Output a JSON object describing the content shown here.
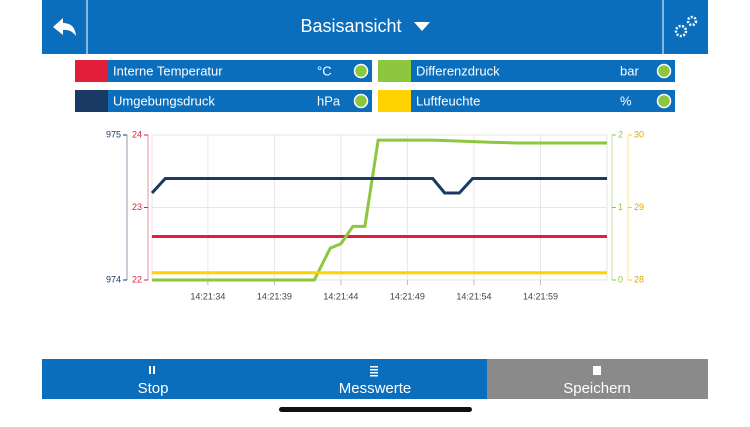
{
  "header": {
    "title": "Basisansicht"
  },
  "chart_data": {
    "type": "line",
    "grid": true,
    "xlim": [
      51689.8,
      51724
    ],
    "xticks": [
      {
        "value": 51694,
        "label": "14:21:34"
      },
      {
        "value": 51699,
        "label": "14:21:39"
      },
      {
        "value": 51704,
        "label": "14:21:44"
      },
      {
        "value": 51709,
        "label": "14:21:49"
      },
      {
        "value": 51714,
        "label": "14:21:54"
      },
      {
        "value": 51719,
        "label": "14:21:59"
      }
    ],
    "series": [
      {
        "name": "Interne Temperatur",
        "unit": "°C",
        "color": "#e31e3a",
        "ylim": [
          22,
          24
        ],
        "yticks": [
          22,
          23,
          24
        ],
        "x": [
          51689.8,
          51724
        ],
        "values": [
          22.6,
          22.6
        ]
      },
      {
        "name": "Differenzdruck",
        "unit": "bar",
        "color": "#8dc63f",
        "ylim": [
          0,
          2
        ],
        "yticks": [
          0,
          1,
          2
        ],
        "x": [
          51689.8,
          51702.0,
          51703.2,
          51704.0,
          51704.9,
          51705.8,
          51706.8,
          51710.9,
          51712.2,
          51715.2,
          51717.4,
          51724
        ],
        "values": [
          0,
          0,
          0.44,
          0.5,
          0.74,
          0.74,
          1.93,
          1.93,
          1.92,
          1.9,
          1.89,
          1.89
        ]
      },
      {
        "name": "Umgebungsdruck",
        "unit": "hPa",
        "color": "#1a3a66",
        "ylim": [
          974,
          975
        ],
        "yticks": [
          974,
          975
        ],
        "x": [
          51689.8,
          51690.8,
          51710.9,
          51711.8,
          51712.9,
          51713.9,
          51724
        ],
        "values": [
          974.6,
          974.7,
          974.7,
          974.6,
          974.6,
          974.7,
          974.7
        ]
      },
      {
        "name": "Luftfeuchte",
        "unit": "%",
        "color": "#ffd200",
        "ylim": [
          28,
          30
        ],
        "yticks": [
          28,
          29,
          30
        ],
        "x": [
          51689.8,
          51724
        ],
        "values": [
          28.1,
          28.1
        ]
      }
    ]
  },
  "footer": {
    "buttons": [
      "Stop",
      "Messwerte",
      "Speichern"
    ]
  }
}
